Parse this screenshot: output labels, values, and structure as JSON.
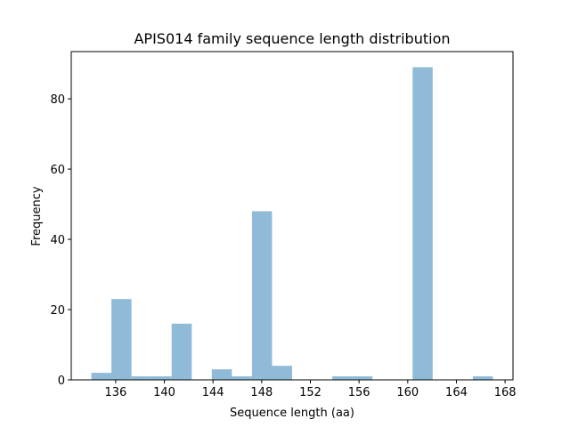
{
  "chart_data": {
    "type": "histogram",
    "title": "APIS014 family sequence length distribution",
    "x_label": "Sequence length (aa)",
    "y_label": "Frequency",
    "bins": [
      134,
      135.65,
      137.3,
      138.95,
      140.6,
      142.25,
      143.9,
      145.55,
      147.2,
      148.85,
      150.5,
      152.15,
      153.8,
      155.45,
      157.1,
      158.75,
      160.4,
      162.05,
      163.7,
      165.35,
      167
    ],
    "values": [
      2,
      23,
      1,
      1,
      16,
      0,
      3,
      1,
      48,
      4,
      0,
      0,
      1,
      1,
      0,
      0,
      89,
      0,
      0,
      1
    ],
    "color": "#8fbbd9",
    "xlim": [
      132.35,
      168.65
    ],
    "xticks": [
      136,
      140,
      144,
      148,
      152,
      156,
      160,
      164,
      168
    ],
    "ylim": [
      0,
      93.45
    ],
    "yticks": [
      0,
      20,
      40,
      60,
      80
    ]
  }
}
